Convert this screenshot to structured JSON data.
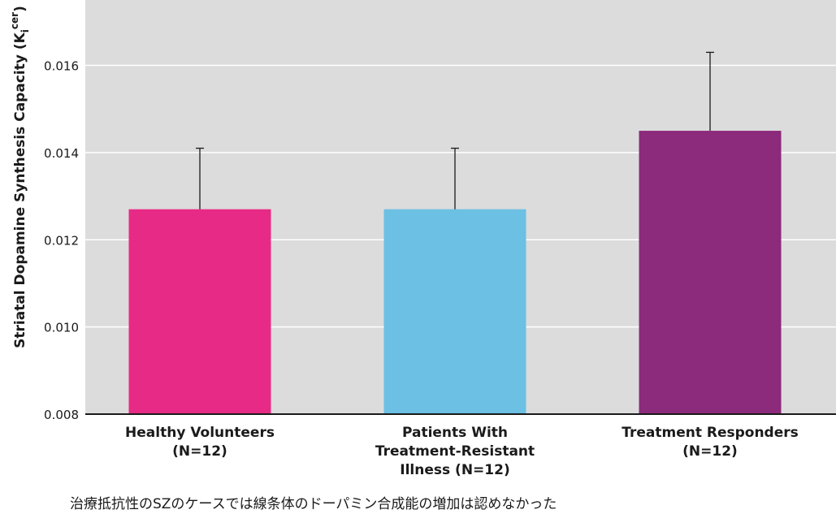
{
  "chart_data": {
    "type": "bar",
    "categories": [
      [
        "Healthy Volunteers",
        "(N=12)"
      ],
      [
        "Patients With",
        "Treatment-Resistant",
        "Illness (N=12)"
      ],
      [
        "Treatment Responders",
        "(N=12)"
      ]
    ],
    "values": [
      0.0127,
      0.0127,
      0.0145
    ],
    "error_plus": [
      0.0014,
      0.0014,
      0.0018
    ],
    "colors": [
      "#e72a85",
      "#6bc0e4",
      "#8c2a7b"
    ],
    "ylabel_main": "Striatal Dopamine Synthesis Capacity (K",
    "ylabel_sub": "i",
    "ylabel_sup": "cer",
    "ylabel_close": ")",
    "ylim": [
      0.008,
      0.0175
    ],
    "yticks": [
      0.008,
      0.01,
      0.012,
      0.014,
      0.016
    ],
    "ytick_labels": [
      "0.008",
      "0.010",
      "0.012",
      "0.014",
      "0.016"
    ],
    "grid": true,
    "background_color": "#dcdcdc",
    "grid_color": "#ffffff",
    "axis_color": "#1a1a1a"
  },
  "caption": "治療抵抗性のSZのケースでは線条体のドーパミン合成能の増加は認めなかった"
}
